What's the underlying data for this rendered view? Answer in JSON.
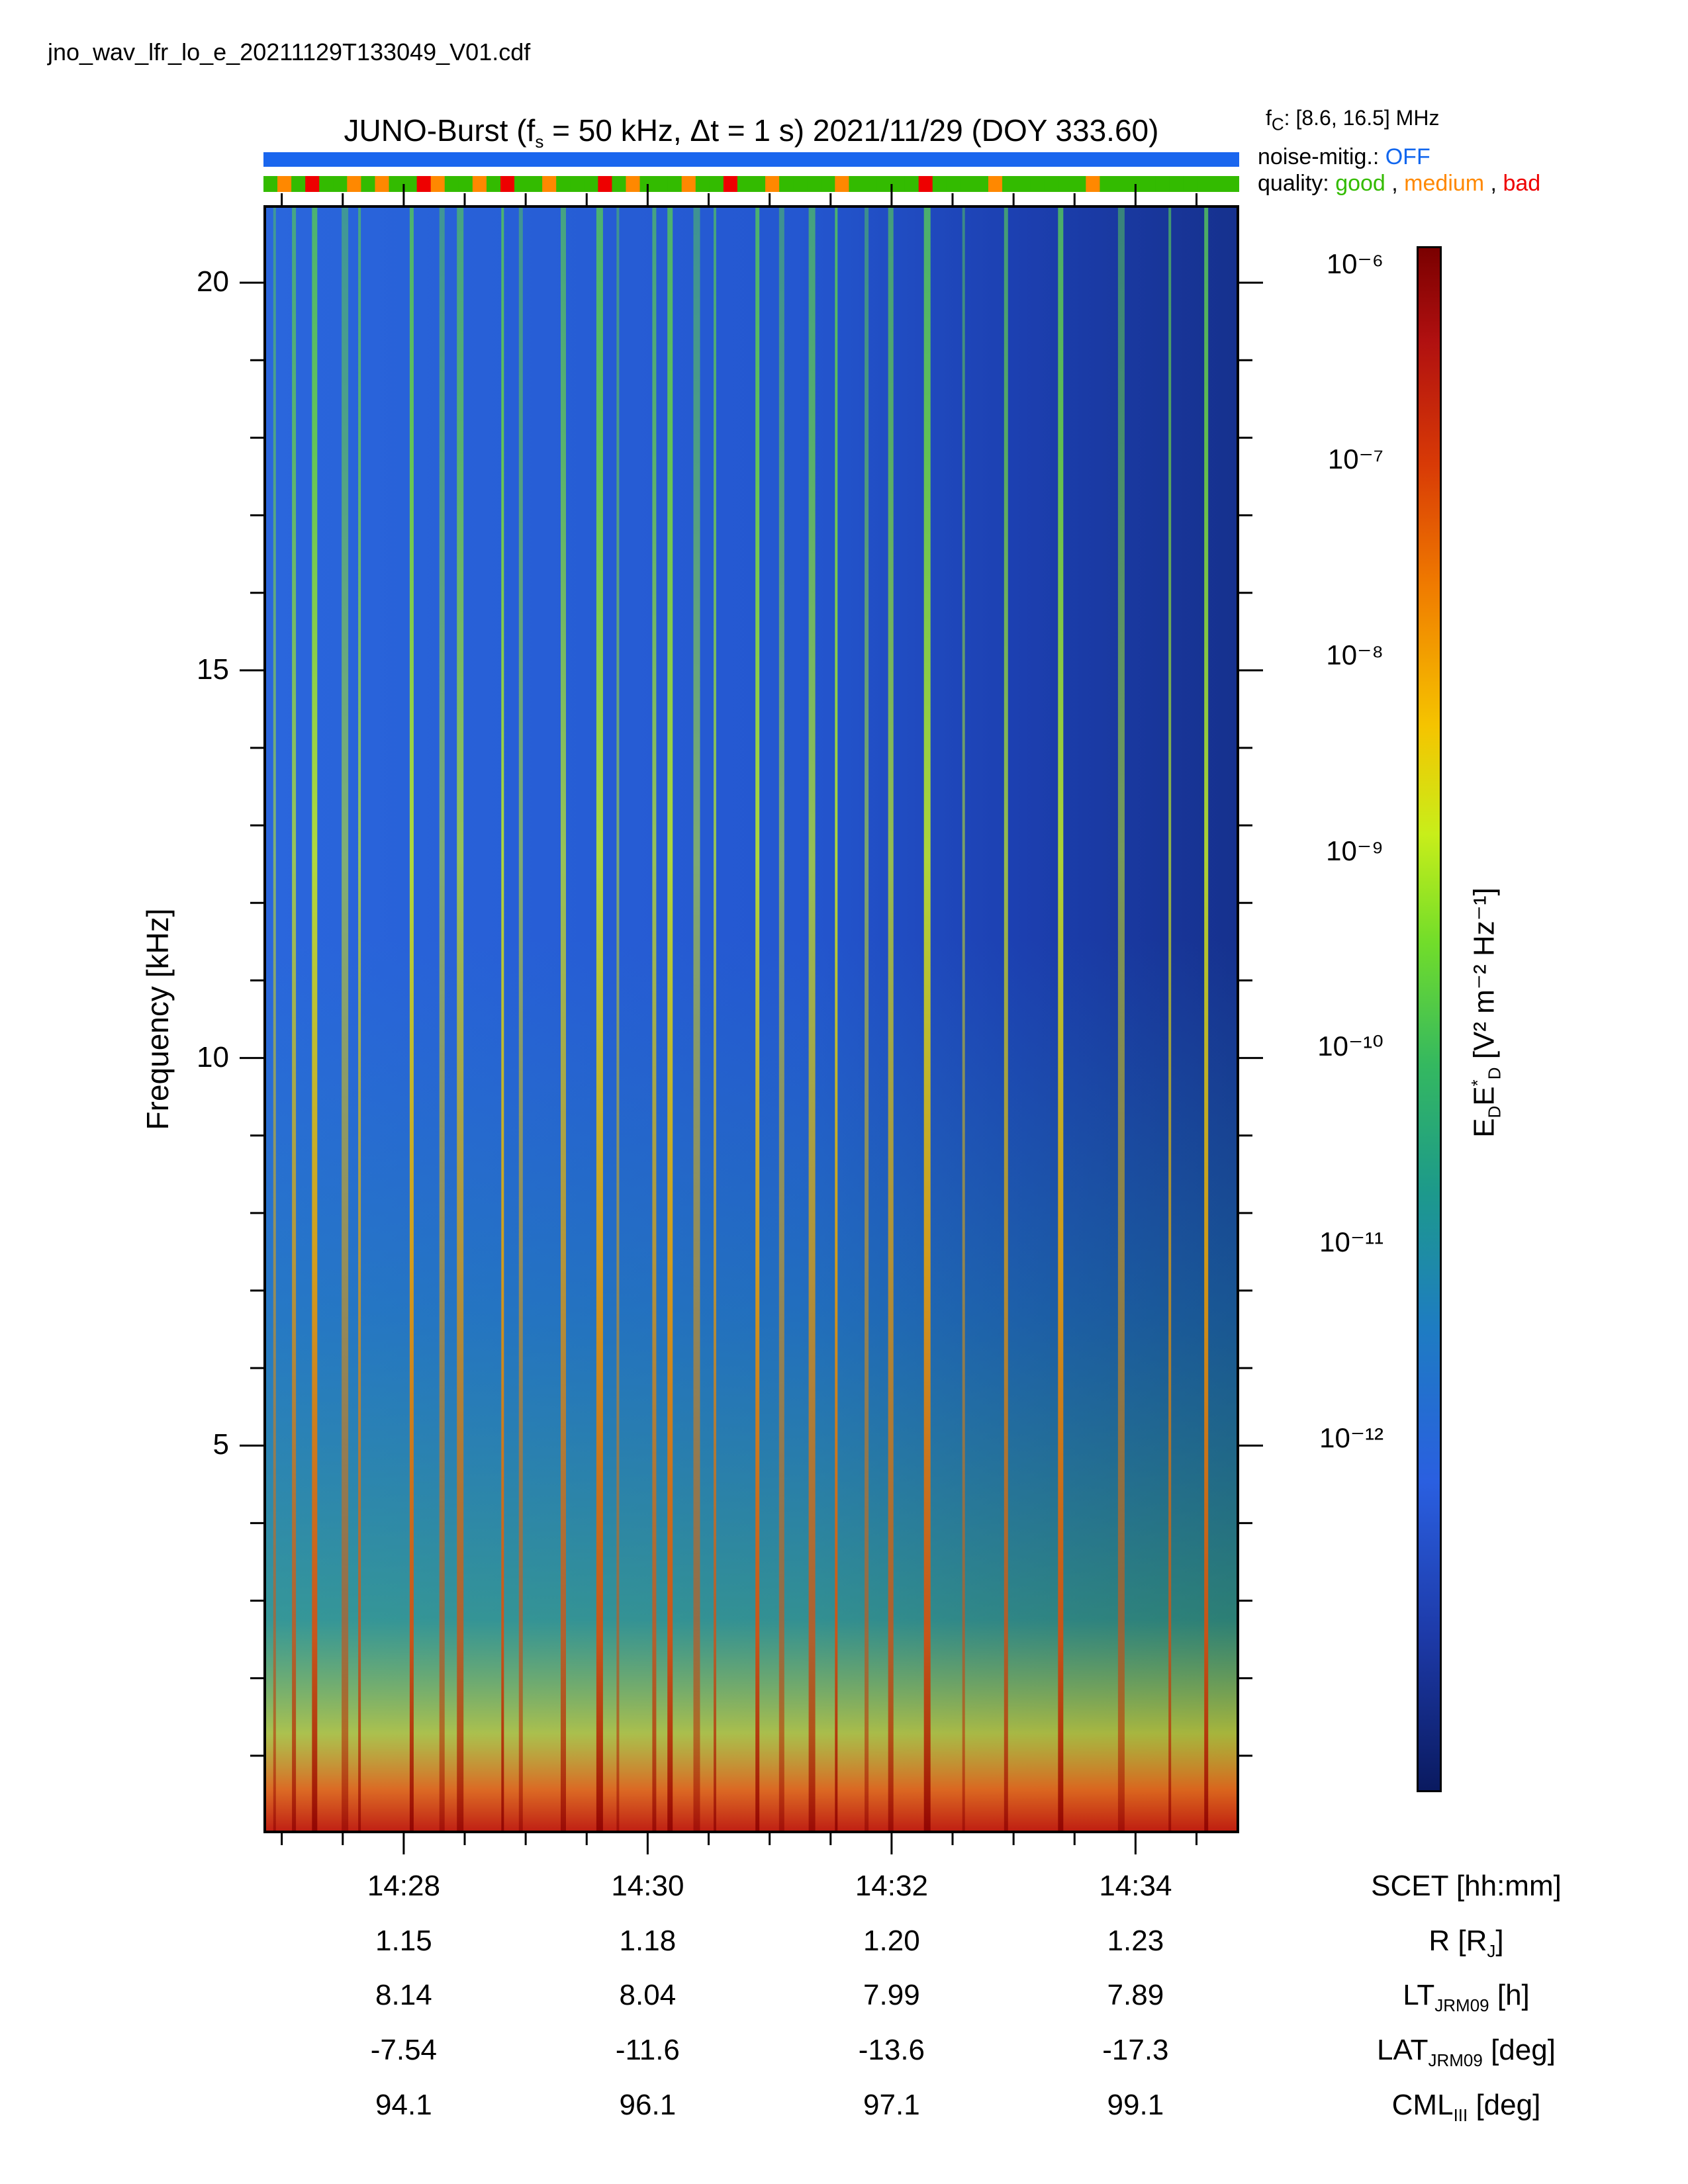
{
  "filename": "jno_wav_lfr_lo_e_20211129T133049_V01.cdf",
  "header": {
    "title_prefix": "JUNO-Burst (f",
    "title_fs_sub": "s",
    "title_mid": " = 50 kHz, Δt = 1 s)  2021/11/29 (DOY 333.60)",
    "fc_prefix": "f",
    "fc_sub": "C",
    "fc_value": ": [8.6, 16.5] MHz",
    "noise_label": "noise-mitig.: ",
    "noise_value": "OFF",
    "quality_label": "quality: ",
    "quality_good": "good",
    "quality_sep1": " , ",
    "quality_medium": "medium",
    "quality_sep2": " , ",
    "quality_bad": "bad"
  },
  "colors": {
    "good": "#33bb00",
    "medium": "#ff8800",
    "bad": "#ee0000",
    "noise_bar": "#1a66ee"
  },
  "quality_flags": [
    "good",
    "medium",
    "good",
    "bad",
    "good",
    "good",
    "medium",
    "good",
    "medium",
    "good",
    "good",
    "bad",
    "medium",
    "good",
    "good",
    "medium",
    "good",
    "bad",
    "good",
    "good",
    "medium",
    "good",
    "good",
    "good",
    "bad",
    "good",
    "medium",
    "good",
    "good",
    "good",
    "medium",
    "good",
    "good",
    "bad",
    "good",
    "good",
    "medium",
    "good",
    "good",
    "good",
    "good",
    "medium",
    "good",
    "good",
    "good",
    "good",
    "good",
    "bad",
    "good",
    "good",
    "good",
    "good",
    "medium",
    "good",
    "good",
    "good",
    "good",
    "good",
    "good",
    "medium",
    "good",
    "good",
    "good",
    "good",
    "good",
    "good",
    "good",
    "good",
    "good",
    "good"
  ],
  "chart_data": {
    "type": "heatmap",
    "ylabel": "Frequency [kHz]",
    "ylim": [
      0,
      21
    ],
    "yticks": [
      "20",
      "15",
      "10",
      "5"
    ],
    "ytick_values": [
      20,
      15,
      10,
      5
    ],
    "xtick_values_min": [
      868,
      870,
      872,
      874
    ],
    "x_range_min": [
      866.85,
      874.85
    ],
    "colorbar": {
      "label_main": "E",
      "label_sub1": "D",
      "label_E2": "E",
      "label_sup": "*",
      "label_sub2": "D",
      "label_units": " [V² m⁻² Hz⁻¹]",
      "scale": "log",
      "ticks": [
        "10⁻⁶",
        "10⁻⁷",
        "10⁻⁸",
        "10⁻⁹",
        "10⁻¹⁰",
        "10⁻¹¹",
        "10⁻¹²"
      ],
      "tick_exponents": [
        -6,
        -7,
        -8,
        -9,
        -10,
        -11,
        -12
      ],
      "range_exponents": [
        -13.8,
        -5.9
      ]
    },
    "bursts_min": [
      866.92,
      867.08,
      867.25,
      867.5,
      867.62,
      868.05,
      868.3,
      868.45,
      868.8,
      868.95,
      869.3,
      869.6,
      869.75,
      870.05,
      870.18,
      870.4,
      870.55,
      870.9,
      871.1,
      871.35,
      871.55,
      871.8,
      872.0,
      872.3,
      872.6,
      872.95,
      873.4,
      873.9,
      874.3,
      874.6
    ]
  },
  "xaxis": {
    "rows": [
      {
        "label": "SCET [hh:mm]",
        "values": [
          "14:28",
          "14:30",
          "14:32",
          "14:34"
        ]
      },
      {
        "label_main": "R [R",
        "label_sub": "J",
        "label_end": "]",
        "values": [
          "1.15",
          "1.18",
          "1.20",
          "1.23"
        ]
      },
      {
        "label_main": "LT",
        "label_sub": "JRM09",
        "label_end": " [h]",
        "values": [
          "8.14",
          "8.04",
          "7.99",
          "7.89"
        ]
      },
      {
        "label_main": "LAT",
        "label_sub": "JRM09",
        "label_end": " [deg]",
        "values": [
          "-7.54",
          "-11.6",
          "-13.6",
          "-17.3"
        ]
      },
      {
        "label_main": "CML",
        "label_sub": "III",
        "label_end": " [deg]",
        "values": [
          "94.1",
          "96.1",
          "97.1",
          "99.1"
        ]
      }
    ]
  }
}
